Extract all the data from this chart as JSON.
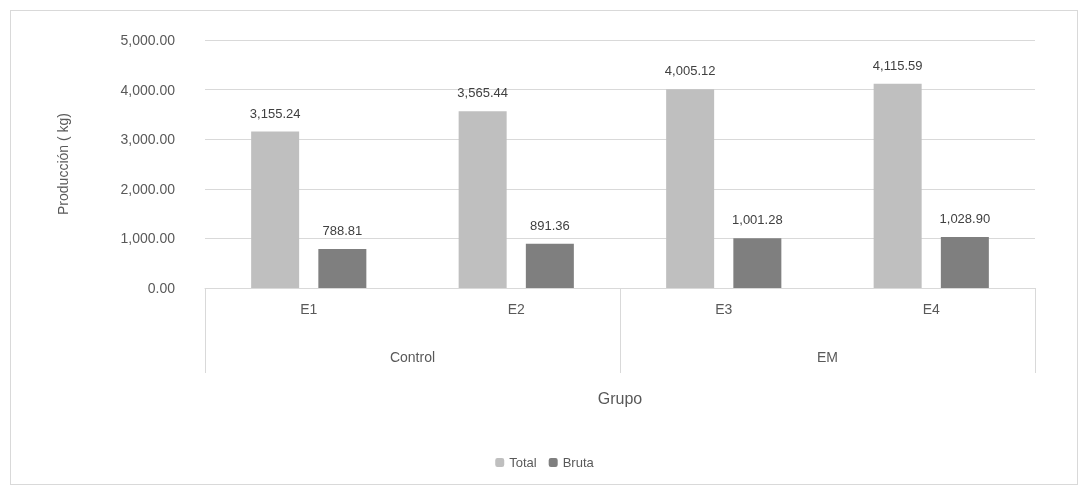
{
  "chart_data": {
    "type": "bar",
    "xlabel": "Grupo",
    "ylabel": "Producción ( kg)",
    "categories": [
      "E1",
      "E2",
      "E3",
      "E4"
    ],
    "series": [
      {
        "name": "Total",
        "color": "#bfbfbf",
        "values": [
          3155.24,
          3565.44,
          4005.12,
          4115.59
        ],
        "value_labels": [
          "3,155.24",
          "3,565.44",
          "4,005.12",
          "4,115.59"
        ]
      },
      {
        "name": "Bruta",
        "color": "#7f7f7f",
        "values": [
          788.81,
          891.36,
          1001.28,
          1028.9
        ],
        "value_labels": [
          "788.81",
          "891.36",
          "1,001.28",
          "1,028.90"
        ]
      }
    ],
    "annotations": [
      "Control",
      "EM"
    ],
    "ylim": [
      0,
      5000
    ],
    "yticks": [
      {
        "value": 0,
        "label": "0.00"
      },
      {
        "value": 1000,
        "label": "1,000.00"
      },
      {
        "value": 2000,
        "label": "2,000.00"
      },
      {
        "value": 3000,
        "label": "3,000.00"
      },
      {
        "value": 4000,
        "label": "4,000.00"
      },
      {
        "value": 5000,
        "label": "5,000.00"
      }
    ],
    "grid": "y",
    "legend": "bottom"
  }
}
